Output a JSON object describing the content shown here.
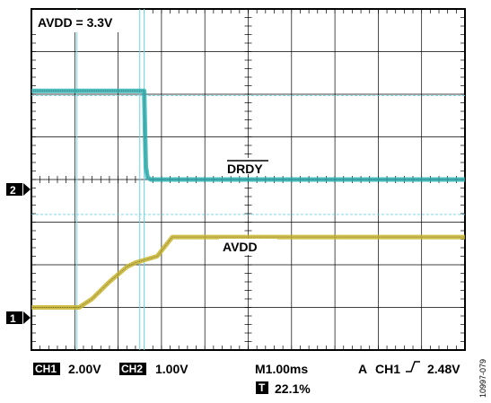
{
  "chart_data": {
    "type": "line",
    "title": "AVDD = 3.3V",
    "grid": true,
    "x_unit": "ms",
    "x_range": [
      -1.6,
      8.4
    ],
    "y_range_divisions": [
      -4,
      4
    ],
    "series": [
      {
        "name": "DRDY",
        "channel": 2,
        "color": "#2bb0b0",
        "volts_per_div": 1.0,
        "ground_div": 0,
        "points_x_ms": [
          -1.6,
          1.0,
          1.02,
          1.04,
          1.08,
          1.15,
          8.4
        ],
        "points_y_volts": [
          2.08,
          2.08,
          1.2,
          0.3,
          0.05,
          0.0,
          0.0
        ]
      },
      {
        "name": "AVDD",
        "channel": 1,
        "color": "#c8b42c",
        "volts_per_div": 2.0,
        "ground_div": -3,
        "points_x_ms": [
          -1.6,
          -0.5,
          -0.2,
          0.2,
          0.6,
          0.8,
          1.3,
          1.65,
          8.4
        ],
        "points_y_volts": [
          0.0,
          0.0,
          0.4,
          1.2,
          1.9,
          2.1,
          2.4,
          3.3,
          3.3
        ]
      }
    ],
    "markers": [
      {
        "label": "1",
        "channel": 1
      },
      {
        "label": "2",
        "channel": 2
      }
    ],
    "footer": {
      "ch1_label": "CH1",
      "ch1_scale": "2.00V",
      "ch2_label": "CH2",
      "ch2_scale": "1.00V",
      "timebase": "M1.00ms",
      "trigger_prefix": "A",
      "trigger_channel": "CH1",
      "trigger_level": "2.48V",
      "t_badge": "T",
      "t_position": "22.1%"
    },
    "side_label": "10997-079",
    "annotations": [
      "DRDY",
      "AVDD"
    ]
  }
}
